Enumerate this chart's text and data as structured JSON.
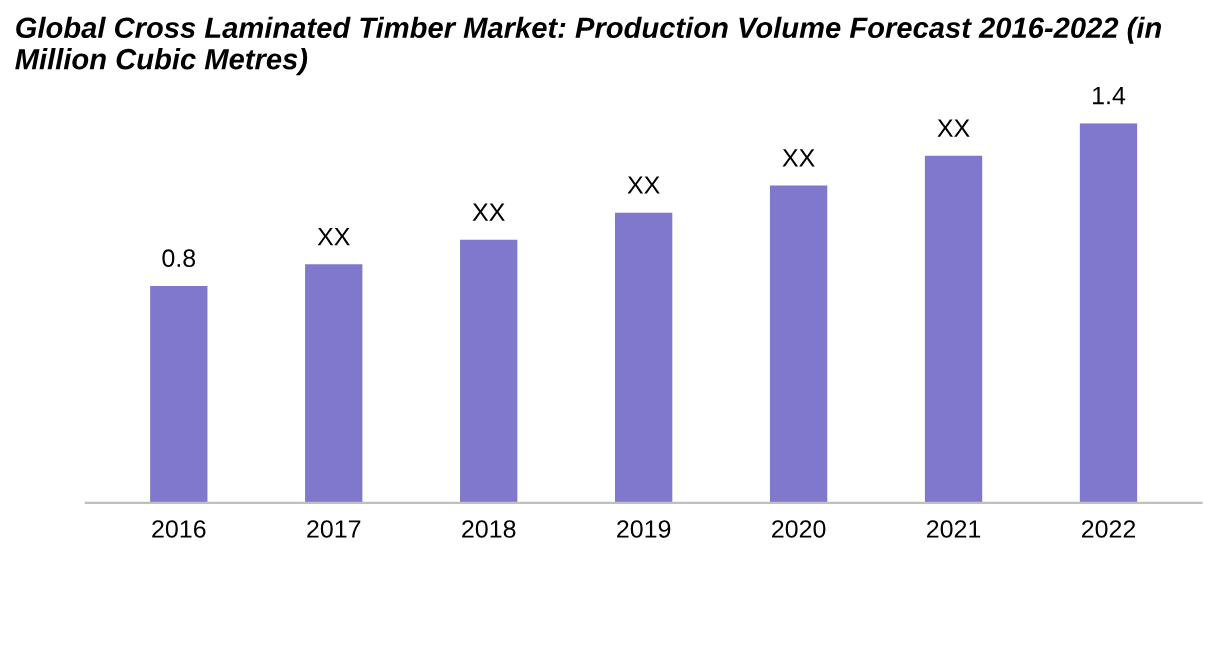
{
  "chart_data": {
    "type": "bar",
    "title": "Global Cross Laminated Timber Market: Production Volume Forecast 2016-2022 (in Million Cubic Metres)",
    "categories": [
      "2016",
      "2017",
      "2018",
      "2019",
      "2020",
      "2021",
      "2022"
    ],
    "values": [
      0.8,
      0.88,
      0.97,
      1.07,
      1.17,
      1.28,
      1.4
    ],
    "value_labels": [
      "0.8",
      "XX",
      "XX",
      "XX",
      "XX",
      "XX",
      "1.4"
    ],
    "color": "#7f78cc",
    "grid": false,
    "legend": false,
    "tick_labels": "x"
  }
}
